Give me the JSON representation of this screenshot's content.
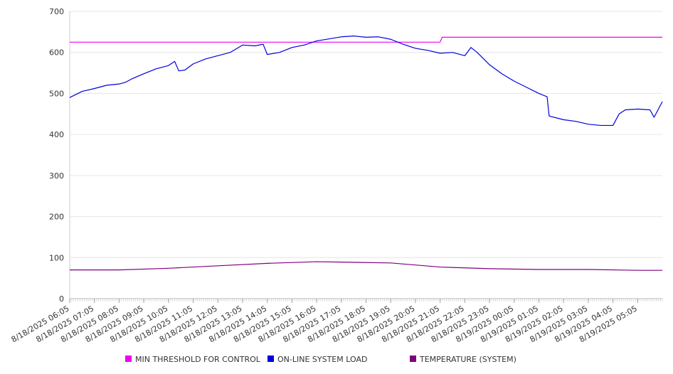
{
  "chart_data": {
    "type": "line",
    "title": "",
    "xlabel": "",
    "ylabel": "",
    "ylim": [
      0,
      700
    ],
    "yticks": [
      0,
      100,
      200,
      300,
      400,
      500,
      600,
      700
    ],
    "x_start": "8/18/2025 06:05",
    "x_end": "8/19/2025 06:05",
    "categories": [
      "8/18/2025 06:05",
      "8/18/2025 07:05",
      "8/18/2025 08:05",
      "8/18/2025 09:05",
      "8/18/2025 10:05",
      "8/18/2025 11:05",
      "8/18/2025 12:05",
      "8/18/2025 13:05",
      "8/18/2025 14:05",
      "8/18/2025 15:05",
      "8/18/2025 16:05",
      "8/18/2025 17:05",
      "8/18/2025 18:05",
      "8/18/2025 19:05",
      "8/18/2025 20:05",
      "8/18/2025 21:05",
      "8/18/2025 22:05",
      "8/18/2025 23:05",
      "8/19/2025 00:05",
      "8/19/2025 01:05",
      "8/19/2025 02:05",
      "8/19/2025 03:05",
      "8/19/2025 04:05",
      "8/19/2025 05:05"
    ],
    "grid": true,
    "legend_position": "bottom",
    "series": [
      {
        "name": "MIN THRESHOLD FOR CONTROL",
        "color": "#ee00ee",
        "points": [
          [
            "8/18/2025 06:05",
            625
          ],
          [
            "8/18/2025 21:05",
            625
          ],
          [
            "8/18/2025 21:10",
            637
          ],
          [
            "8/19/2025 06:05",
            637
          ]
        ]
      },
      {
        "name": "ON-LINE SYSTEM LOAD",
        "color": "#0000dd",
        "points": [
          [
            "8/18/2025 06:05",
            490
          ],
          [
            "8/18/2025 06:35",
            505
          ],
          [
            "8/18/2025 07:05",
            512
          ],
          [
            "8/18/2025 07:35",
            520
          ],
          [
            "8/18/2025 08:05",
            523
          ],
          [
            "8/18/2025 08:20",
            527
          ],
          [
            "8/18/2025 08:35",
            535
          ],
          [
            "8/18/2025 09:05",
            548
          ],
          [
            "8/18/2025 09:35",
            560
          ],
          [
            "8/18/2025 10:05",
            568
          ],
          [
            "8/18/2025 10:20",
            578
          ],
          [
            "8/18/2025 10:30",
            555
          ],
          [
            "8/18/2025 10:45",
            557
          ],
          [
            "8/18/2025 11:05",
            572
          ],
          [
            "8/18/2025 11:35",
            584
          ],
          [
            "8/18/2025 12:05",
            592
          ],
          [
            "8/18/2025 12:35",
            600
          ],
          [
            "8/18/2025 13:05",
            618
          ],
          [
            "8/18/2025 13:35",
            616
          ],
          [
            "8/18/2025 13:55",
            620
          ],
          [
            "8/18/2025 14:05",
            595
          ],
          [
            "8/18/2025 14:35",
            600
          ],
          [
            "8/18/2025 15:05",
            612
          ],
          [
            "8/18/2025 15:35",
            618
          ],
          [
            "8/18/2025 16:05",
            628
          ],
          [
            "8/18/2025 16:35",
            633
          ],
          [
            "8/18/2025 17:05",
            638
          ],
          [
            "8/18/2025 17:35",
            640
          ],
          [
            "8/18/2025 18:05",
            637
          ],
          [
            "8/18/2025 18:35",
            638
          ],
          [
            "8/18/2025 19:05",
            632
          ],
          [
            "8/18/2025 19:35",
            620
          ],
          [
            "8/18/2025 20:05",
            610
          ],
          [
            "8/18/2025 20:35",
            605
          ],
          [
            "8/18/2025 21:05",
            598
          ],
          [
            "8/18/2025 21:35",
            600
          ],
          [
            "8/18/2025 22:05",
            592
          ],
          [
            "8/18/2025 22:20",
            612
          ],
          [
            "8/18/2025 22:35",
            600
          ],
          [
            "8/18/2025 23:05",
            570
          ],
          [
            "8/18/2025 23:35",
            548
          ],
          [
            "8/19/2025 00:05",
            530
          ],
          [
            "8/19/2025 00:35",
            515
          ],
          [
            "8/19/2025 01:05",
            500
          ],
          [
            "8/19/2025 01:25",
            492
          ],
          [
            "8/19/2025 01:30",
            445
          ],
          [
            "8/19/2025 02:05",
            436
          ],
          [
            "8/19/2025 02:35",
            432
          ],
          [
            "8/19/2025 03:05",
            425
          ],
          [
            "8/19/2025 03:35",
            422
          ],
          [
            "8/19/2025 04:05",
            422
          ],
          [
            "8/19/2025 04:20",
            450
          ],
          [
            "8/19/2025 04:35",
            460
          ],
          [
            "8/19/2025 05:05",
            462
          ],
          [
            "8/19/2025 05:35",
            460
          ],
          [
            "8/19/2025 05:45",
            442
          ],
          [
            "8/19/2025 06:05",
            480
          ]
        ]
      },
      {
        "name": "TEMPERATURE (SYSTEM)",
        "color": "#800080",
        "points": [
          [
            "8/18/2025 06:05",
            70
          ],
          [
            "8/18/2025 08:05",
            70
          ],
          [
            "8/18/2025 10:05",
            74
          ],
          [
            "8/18/2025 12:05",
            80
          ],
          [
            "8/18/2025 14:05",
            86
          ],
          [
            "8/18/2025 16:05",
            90
          ],
          [
            "8/18/2025 17:05",
            89
          ],
          [
            "8/18/2025 19:05",
            87
          ],
          [
            "8/18/2025 21:05",
            77
          ],
          [
            "8/18/2025 23:05",
            73
          ],
          [
            "8/19/2025 01:05",
            71
          ],
          [
            "8/19/2025 03:05",
            71
          ],
          [
            "8/19/2025 05:05",
            69
          ],
          [
            "8/19/2025 06:05",
            69
          ]
        ]
      }
    ]
  }
}
